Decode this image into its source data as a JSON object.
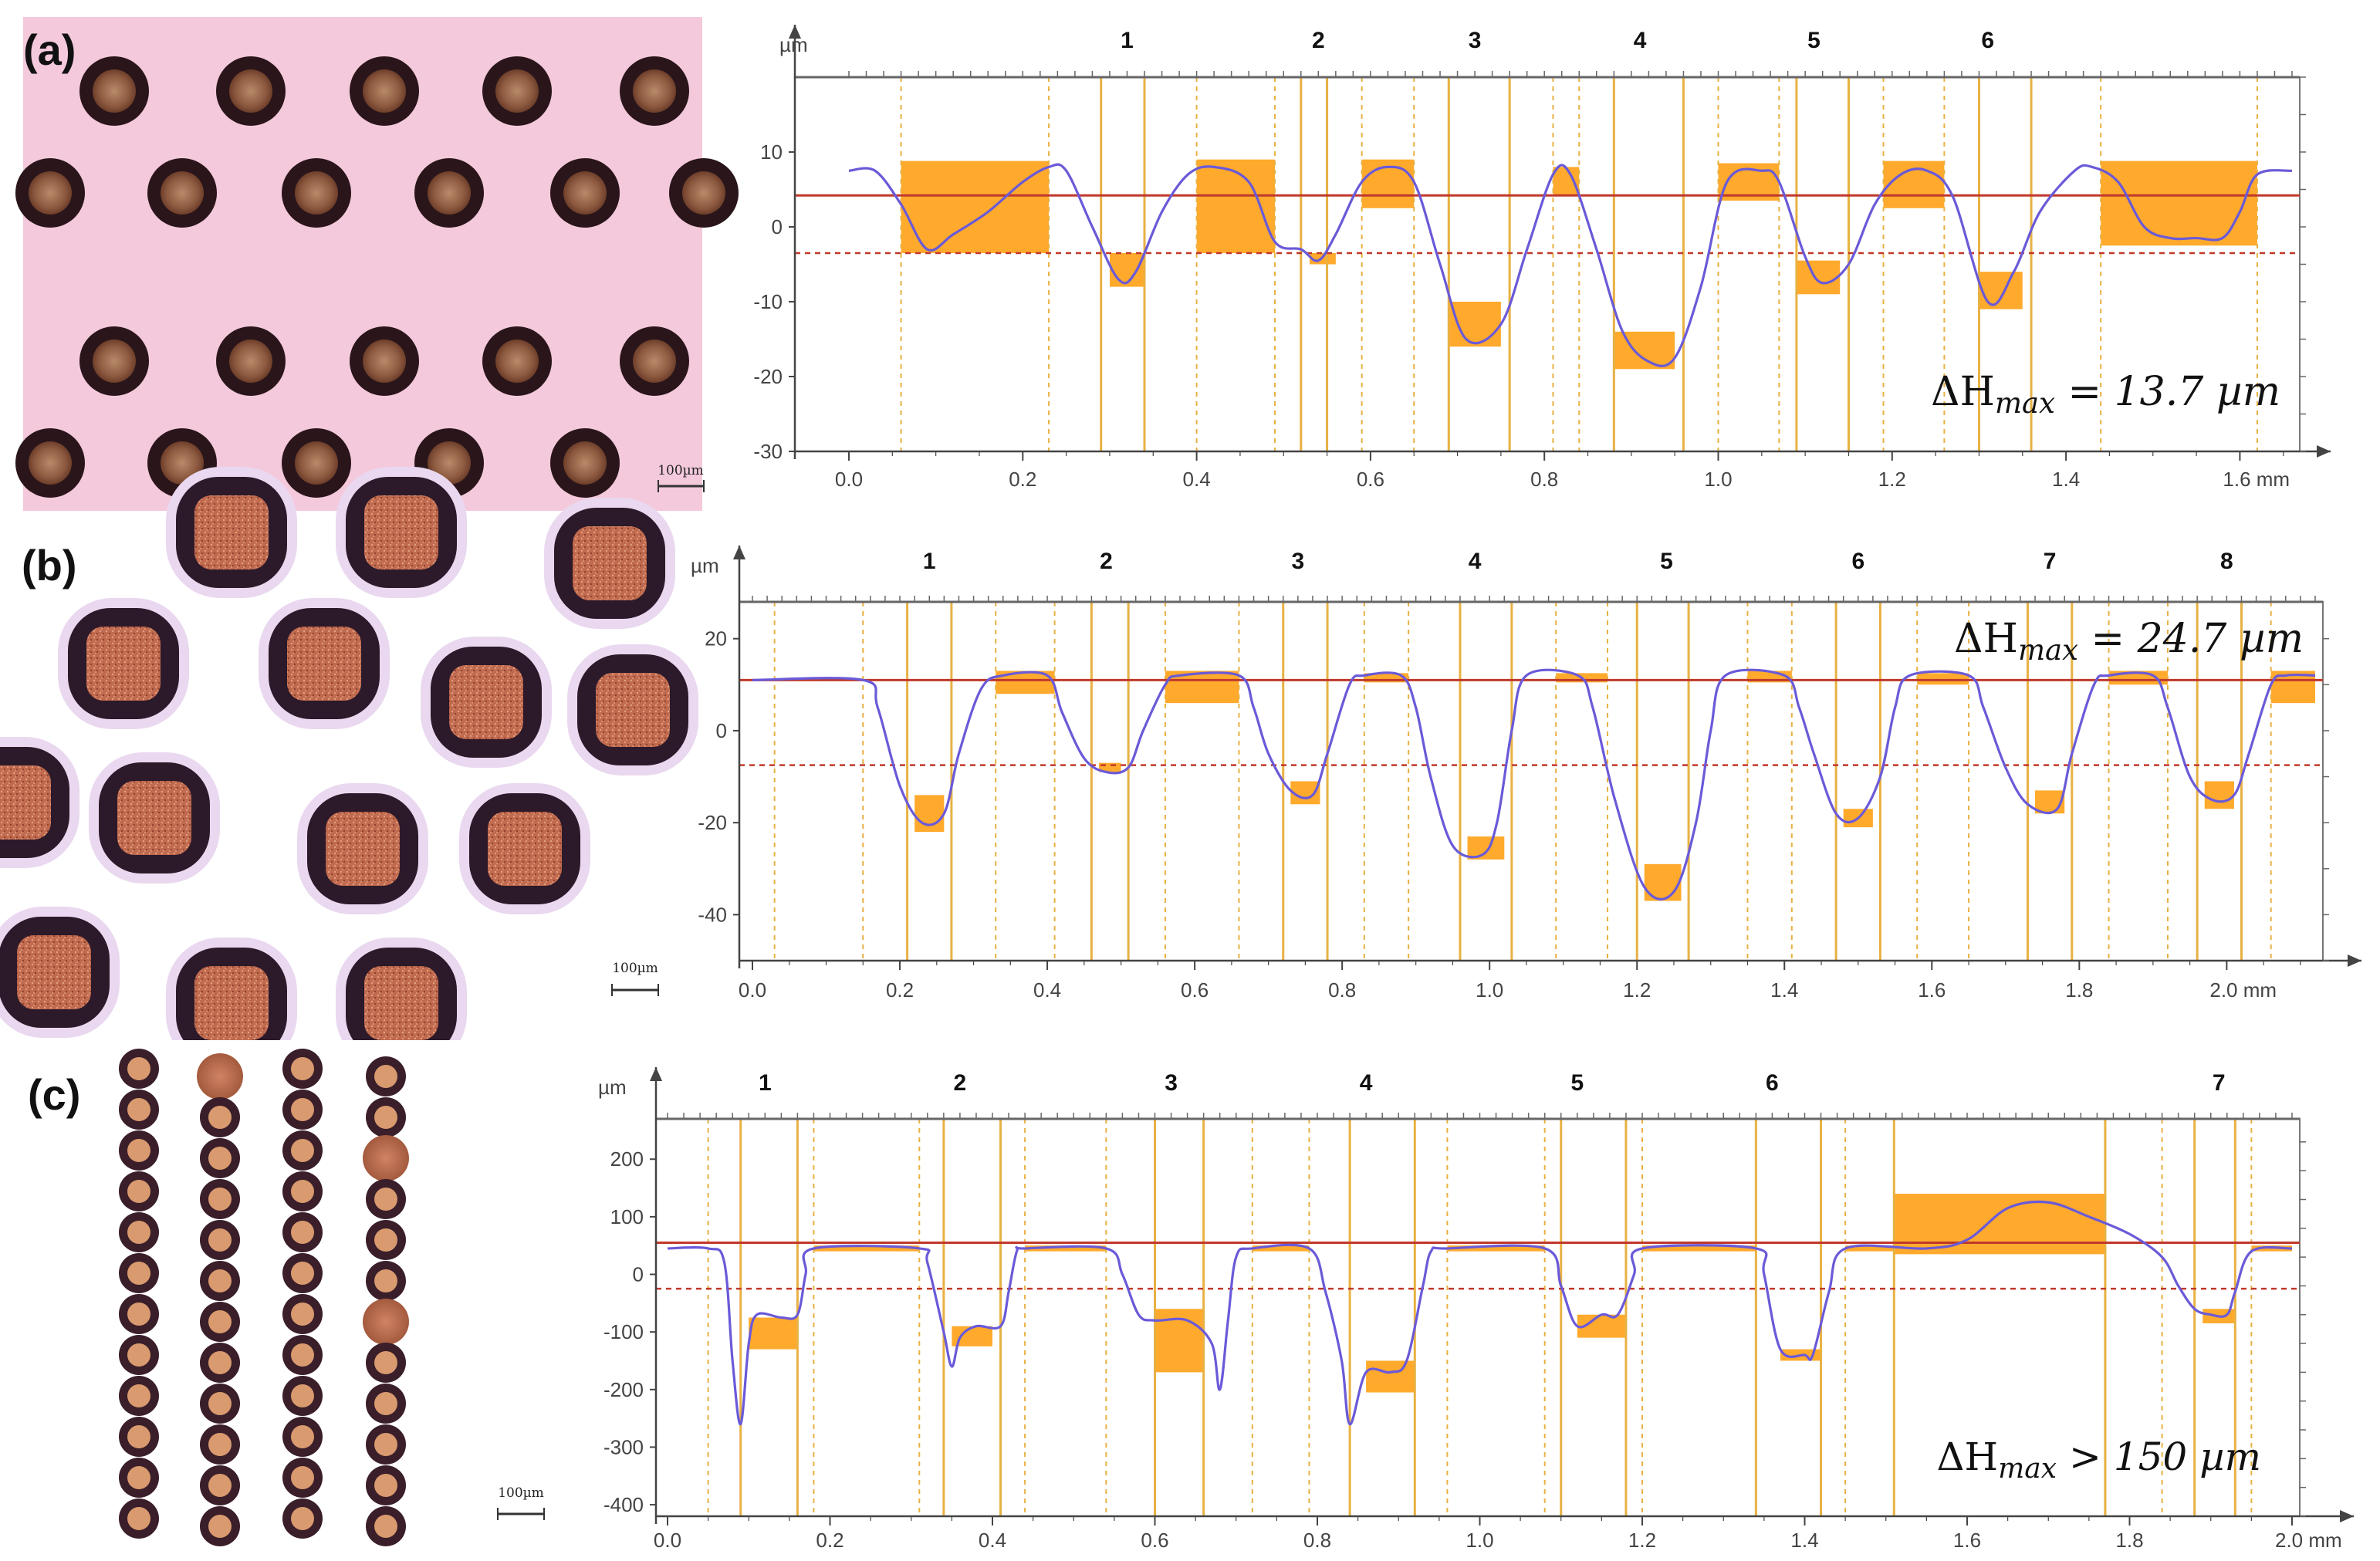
{
  "figure": {
    "scale_label": "100µm",
    "panels": [
      {
        "label": "(a)",
        "micrograph": "micrograph-a",
        "delta_h_text": "ΔH_max = 13.7 µm"
      },
      {
        "label": "(b)",
        "micrograph": "micrograph-b",
        "delta_h_text": "ΔH_max = 24.7 µm"
      },
      {
        "label": "(c)",
        "micrograph": "micrograph-c",
        "delta_h_text": "ΔH_max > 150 µm"
      }
    ]
  },
  "chart_data": [
    {
      "type": "line",
      "title": "",
      "xlabel": "mm",
      "ylabel": "µm",
      "xlim": [
        0.0,
        1.66
      ],
      "ylim": [
        -30,
        20
      ],
      "x_ticks": [
        "0.0",
        "0.2",
        "0.4",
        "0.6",
        "0.8",
        "1.0",
        "1.2",
        "1.4",
        "1.6 mm"
      ],
      "x_tick_values": [
        0,
        0.2,
        0.4,
        0.6,
        0.8,
        1.0,
        1.2,
        1.4,
        1.6
      ],
      "y_ticks": [
        "10",
        "0",
        "-10",
        "-20",
        "-30"
      ],
      "y_tick_values": [
        10,
        0,
        -10,
        -20,
        -30
      ],
      "unit_label": "µm",
      "annotation": "ΔH_max = 13.7 µm",
      "feature_labels": [
        "1",
        "2",
        "3",
        "4",
        "5",
        "6"
      ],
      "feature_positions": [
        0.32,
        0.54,
        0.72,
        0.91,
        1.11,
        1.31
      ],
      "ref_line_solid": 4.2,
      "ref_line_dashed": -3.5,
      "profile": [
        [
          0,
          7.5
        ],
        [
          0.03,
          7.5
        ],
        [
          0.06,
          3
        ],
        [
          0.09,
          -3
        ],
        [
          0.12,
          -1
        ],
        [
          0.16,
          2
        ],
        [
          0.2,
          6
        ],
        [
          0.23,
          8
        ],
        [
          0.25,
          7.5
        ],
        [
          0.28,
          0
        ],
        [
          0.31,
          -7
        ],
        [
          0.33,
          -6
        ],
        [
          0.36,
          2
        ],
        [
          0.39,
          7
        ],
        [
          0.42,
          8
        ],
        [
          0.46,
          6
        ],
        [
          0.49,
          -2
        ],
        [
          0.52,
          -3
        ],
        [
          0.54,
          -4.5
        ],
        [
          0.56,
          -1
        ],
        [
          0.59,
          6
        ],
        [
          0.62,
          8
        ],
        [
          0.65,
          6
        ],
        [
          0.68,
          -5
        ],
        [
          0.71,
          -15
        ],
        [
          0.75,
          -13
        ],
        [
          0.78,
          -3
        ],
        [
          0.81,
          7
        ],
        [
          0.83,
          7
        ],
        [
          0.86,
          -3
        ],
        [
          0.89,
          -14
        ],
        [
          0.92,
          -18
        ],
        [
          0.95,
          -17.5
        ],
        [
          0.98,
          -8
        ],
        [
          1.01,
          6
        ],
        [
          1.05,
          7.5
        ],
        [
          1.07,
          6
        ],
        [
          1.1,
          -4
        ],
        [
          1.12,
          -7.5
        ],
        [
          1.15,
          -5
        ],
        [
          1.18,
          3
        ],
        [
          1.21,
          7
        ],
        [
          1.24,
          7.5
        ],
        [
          1.27,
          4
        ],
        [
          1.31,
          -10
        ],
        [
          1.34,
          -6
        ],
        [
          1.37,
          2
        ],
        [
          1.41,
          7.5
        ],
        [
          1.43,
          8
        ],
        [
          1.46,
          6
        ],
        [
          1.49,
          0
        ],
        [
          1.52,
          -1.5
        ],
        [
          1.55,
          -1.5
        ],
        [
          1.58,
          -1.5
        ],
        [
          1.6,
          2
        ],
        [
          1.62,
          7
        ],
        [
          1.66,
          7.5
        ]
      ],
      "highlight_boxes": [
        [
          0.06,
          0.23,
          -3.5,
          8.8
        ],
        [
          0.3,
          0.34,
          -8,
          -3.5
        ],
        [
          0.4,
          0.49,
          -3.5,
          9
        ],
        [
          0.53,
          0.56,
          -5,
          -3.5
        ],
        [
          0.59,
          0.65,
          2.5,
          9
        ],
        [
          0.69,
          0.75,
          -16,
          -10
        ],
        [
          0.81,
          0.84,
          4.2,
          8
        ],
        [
          0.88,
          0.95,
          -19,
          -14
        ],
        [
          1.0,
          1.07,
          3.5,
          8.5
        ],
        [
          1.09,
          1.14,
          -9,
          -4.5
        ],
        [
          1.19,
          1.26,
          2.5,
          8.8
        ],
        [
          1.3,
          1.35,
          -11,
          -6
        ],
        [
          1.44,
          1.62,
          -2.5,
          8.8
        ]
      ],
      "solid_guides": [
        0.29,
        0.34,
        0.52,
        0.55,
        0.69,
        0.76,
        0.88,
        0.96,
        1.09,
        1.15,
        1.3,
        1.36
      ],
      "dashed_guides": [
        0.06,
        0.23,
        0.4,
        0.49,
        0.59,
        0.65,
        0.81,
        0.84,
        1.0,
        1.07,
        1.19,
        1.26,
        1.44,
        1.62
      ]
    },
    {
      "type": "line",
      "title": "",
      "xlabel": "mm",
      "ylabel": "µm",
      "xlim": [
        0.0,
        2.12
      ],
      "ylim": [
        -50,
        28
      ],
      "x_ticks": [
        "0.0",
        "0.2",
        "0.4",
        "0.6",
        "0.8",
        "1.0",
        "1.2",
        "1.4",
        "1.6",
        "1.8",
        "2.0 mm"
      ],
      "x_tick_values": [
        0,
        0.2,
        0.4,
        0.6,
        0.8,
        1.0,
        1.2,
        1.4,
        1.6,
        1.8,
        2.0
      ],
      "y_ticks": [
        "20",
        "0",
        "-20",
        "-40"
      ],
      "y_tick_values": [
        20,
        0,
        -20,
        -40
      ],
      "unit_label": "µm",
      "annotation": "ΔH_max = 24.7 µm",
      "feature_labels": [
        "1",
        "2",
        "3",
        "4",
        "5",
        "6",
        "7",
        "8"
      ],
      "feature_positions": [
        0.24,
        0.48,
        0.74,
        0.98,
        1.24,
        1.5,
        1.76,
        2.0
      ],
      "ref_line_solid": 11,
      "ref_line_dashed": -7.5,
      "profile": [
        [
          0,
          11
        ],
        [
          0.15,
          11
        ],
        [
          0.17,
          5
        ],
        [
          0.2,
          -12
        ],
        [
          0.23,
          -20
        ],
        [
          0.26,
          -18
        ],
        [
          0.28,
          -5
        ],
        [
          0.31,
          9
        ],
        [
          0.34,
          12
        ],
        [
          0.4,
          12
        ],
        [
          0.42,
          4
        ],
        [
          0.45,
          -6
        ],
        [
          0.48,
          -9
        ],
        [
          0.51,
          -8
        ],
        [
          0.53,
          0
        ],
        [
          0.56,
          10
        ],
        [
          0.58,
          12
        ],
        [
          0.66,
          12
        ],
        [
          0.68,
          5
        ],
        [
          0.7,
          -5
        ],
        [
          0.73,
          -13
        ],
        [
          0.76,
          -14
        ],
        [
          0.78,
          -5
        ],
        [
          0.81,
          10
        ],
        [
          0.83,
          12
        ],
        [
          0.88,
          12
        ],
        [
          0.9,
          5
        ],
        [
          0.92,
          -10
        ],
        [
          0.95,
          -25
        ],
        [
          0.99,
          -27
        ],
        [
          1.01,
          -20
        ],
        [
          1.03,
          0
        ],
        [
          1.05,
          12
        ],
        [
          1.12,
          12
        ],
        [
          1.14,
          5
        ],
        [
          1.17,
          -15
        ],
        [
          1.21,
          -34
        ],
        [
          1.25,
          -35
        ],
        [
          1.28,
          -20
        ],
        [
          1.3,
          0
        ],
        [
          1.32,
          12
        ],
        [
          1.4,
          12
        ],
        [
          1.42,
          5
        ],
        [
          1.44,
          -5
        ],
        [
          1.47,
          -18
        ],
        [
          1.5,
          -19
        ],
        [
          1.53,
          -10
        ],
        [
          1.55,
          5
        ],
        [
          1.57,
          12
        ],
        [
          1.65,
          12
        ],
        [
          1.67,
          5
        ],
        [
          1.7,
          -8
        ],
        [
          1.73,
          -16
        ],
        [
          1.77,
          -17
        ],
        [
          1.79,
          -5
        ],
        [
          1.82,
          10
        ],
        [
          1.84,
          12
        ],
        [
          1.9,
          12
        ],
        [
          1.92,
          5
        ],
        [
          1.95,
          -10
        ],
        [
          1.98,
          -15
        ],
        [
          2.01,
          -14
        ],
        [
          2.03,
          -5
        ],
        [
          2.06,
          10
        ],
        [
          2.08,
          12
        ],
        [
          2.12,
          12
        ]
      ],
      "highlight_boxes": [
        [
          0.22,
          0.26,
          -22,
          -14
        ],
        [
          0.33,
          0.41,
          8,
          13
        ],
        [
          0.47,
          0.5,
          -9,
          -7
        ],
        [
          0.56,
          0.66,
          6,
          13
        ],
        [
          0.73,
          0.77,
          -16,
          -11
        ],
        [
          0.83,
          0.89,
          10.5,
          12.5
        ],
        [
          0.97,
          1.02,
          -28,
          -23
        ],
        [
          1.09,
          1.16,
          10.5,
          12.5
        ],
        [
          1.21,
          1.26,
          -37,
          -29
        ],
        [
          1.35,
          1.41,
          10.5,
          13
        ],
        [
          1.48,
          1.52,
          -21,
          -17
        ],
        [
          1.58,
          1.65,
          10,
          12.5
        ],
        [
          1.74,
          1.78,
          -18,
          -13
        ],
        [
          1.84,
          1.92,
          10,
          13
        ],
        [
          1.97,
          2.01,
          -17,
          -11
        ],
        [
          2.06,
          2.12,
          6,
          13
        ]
      ],
      "solid_guides": [
        0.21,
        0.27,
        0.46,
        0.51,
        0.72,
        0.78,
        0.96,
        1.03,
        1.2,
        1.27,
        1.47,
        1.53,
        1.73,
        1.79,
        1.96,
        2.02
      ],
      "dashed_guides": [
        0.03,
        0.15,
        0.33,
        0.41,
        0.56,
        0.66,
        0.83,
        0.89,
        1.09,
        1.16,
        1.35,
        1.41,
        1.58,
        1.65,
        1.84,
        1.92,
        2.06
      ]
    },
    {
      "type": "line",
      "title": "",
      "xlabel": "mm",
      "ylabel": "µm",
      "xlim": [
        0.0,
        2.0
      ],
      "ylim": [
        -420,
        270
      ],
      "x_ticks": [
        "0.0",
        "0.2",
        "0.4",
        "0.6",
        "0.8",
        "1.0",
        "1.2",
        "1.4",
        "1.6",
        "1.8",
        "2.0 mm"
      ],
      "x_tick_values": [
        0,
        0.2,
        0.4,
        0.6,
        0.8,
        1.0,
        1.2,
        1.4,
        1.6,
        1.8,
        2.0
      ],
      "y_ticks": [
        "200",
        "100",
        "0",
        "-100",
        "-200",
        "-300",
        "-400"
      ],
      "y_tick_values": [
        200,
        100,
        0,
        -100,
        -200,
        -300,
        -400
      ],
      "unit_label": "µm",
      "annotation": "ΔH_max > 150 µm",
      "feature_labels": [
        "1",
        "2",
        "3",
        "4",
        "5",
        "6",
        "7"
      ],
      "feature_positions": [
        0.12,
        0.36,
        0.62,
        0.86,
        1.12,
        1.36,
        1.91
      ],
      "ref_line_solid": 55,
      "ref_line_dashed": -25,
      "profile": [
        [
          0,
          45
        ],
        [
          0.05,
          45
        ],
        [
          0.07,
          20
        ],
        [
          0.08,
          -150
        ],
        [
          0.09,
          -260
        ],
        [
          0.1,
          -120
        ],
        [
          0.11,
          -70
        ],
        [
          0.14,
          -75
        ],
        [
          0.16,
          -70
        ],
        [
          0.17,
          0
        ],
        [
          0.18,
          45
        ],
        [
          0.31,
          45
        ],
        [
          0.32,
          20
        ],
        [
          0.34,
          -100
        ],
        [
          0.35,
          -160
        ],
        [
          0.36,
          -110
        ],
        [
          0.38,
          -90
        ],
        [
          0.41,
          -90
        ],
        [
          0.42,
          -30
        ],
        [
          0.43,
          40
        ],
        [
          0.44,
          45
        ],
        [
          0.54,
          45
        ],
        [
          0.56,
          0
        ],
        [
          0.58,
          -70
        ],
        [
          0.6,
          -80
        ],
        [
          0.64,
          -80
        ],
        [
          0.67,
          -120
        ],
        [
          0.68,
          -200
        ],
        [
          0.69,
          -80
        ],
        [
          0.7,
          30
        ],
        [
          0.72,
          45
        ],
        [
          0.79,
          45
        ],
        [
          0.81,
          -30
        ],
        [
          0.83,
          -150
        ],
        [
          0.84,
          -260
        ],
        [
          0.86,
          -170
        ],
        [
          0.89,
          -170
        ],
        [
          0.91,
          -150
        ],
        [
          0.93,
          -20
        ],
        [
          0.94,
          40
        ],
        [
          0.96,
          45
        ],
        [
          1.08,
          45
        ],
        [
          1.1,
          -20
        ],
        [
          1.12,
          -90
        ],
        [
          1.15,
          -70
        ],
        [
          1.17,
          -70
        ],
        [
          1.19,
          0
        ],
        [
          1.2,
          45
        ],
        [
          1.34,
          45
        ],
        [
          1.35,
          0
        ],
        [
          1.37,
          -130
        ],
        [
          1.4,
          -140
        ],
        [
          1.41,
          -140
        ],
        [
          1.43,
          -30
        ],
        [
          1.45,
          45
        ],
        [
          1.55,
          45
        ],
        [
          1.6,
          60
        ],
        [
          1.65,
          115
        ],
        [
          1.7,
          125
        ],
        [
          1.75,
          100
        ],
        [
          1.8,
          70
        ],
        [
          1.84,
          30
        ],
        [
          1.86,
          -20
        ],
        [
          1.88,
          -60
        ],
        [
          1.9,
          -70
        ],
        [
          1.92,
          -70
        ],
        [
          1.93,
          -30
        ],
        [
          1.95,
          40
        ],
        [
          2.0,
          45
        ]
      ],
      "highlight_boxes": [
        [
          0.1,
          0.16,
          -130,
          -75
        ],
        [
          0.18,
          0.31,
          40,
          50
        ],
        [
          0.35,
          0.4,
          -125,
          -90
        ],
        [
          0.44,
          0.54,
          40,
          50
        ],
        [
          0.6,
          0.66,
          -170,
          -60
        ],
        [
          0.72,
          0.79,
          40,
          50
        ],
        [
          0.86,
          0.92,
          -205,
          -150
        ],
        [
          0.96,
          1.08,
          40,
          50
        ],
        [
          1.12,
          1.18,
          -110,
          -70
        ],
        [
          1.2,
          1.34,
          40,
          50
        ],
        [
          1.37,
          1.42,
          -150,
          -130
        ],
        [
          1.45,
          1.51,
          40,
          50
        ],
        [
          1.51,
          1.77,
          35,
          140
        ],
        [
          1.89,
          1.93,
          -85,
          -60
        ],
        [
          1.95,
          2.0,
          40,
          50
        ]
      ],
      "solid_guides": [
        0.09,
        0.16,
        0.34,
        0.41,
        0.6,
        0.66,
        0.84,
        0.92,
        1.1,
        1.18,
        1.34,
        1.42,
        1.51,
        1.77,
        1.88,
        1.93
      ],
      "dashed_guides": [
        0.05,
        0.18,
        0.31,
        0.44,
        0.54,
        0.72,
        0.79,
        0.96,
        1.08,
        1.2,
        1.34,
        1.45,
        1.84,
        1.95
      ]
    }
  ]
}
